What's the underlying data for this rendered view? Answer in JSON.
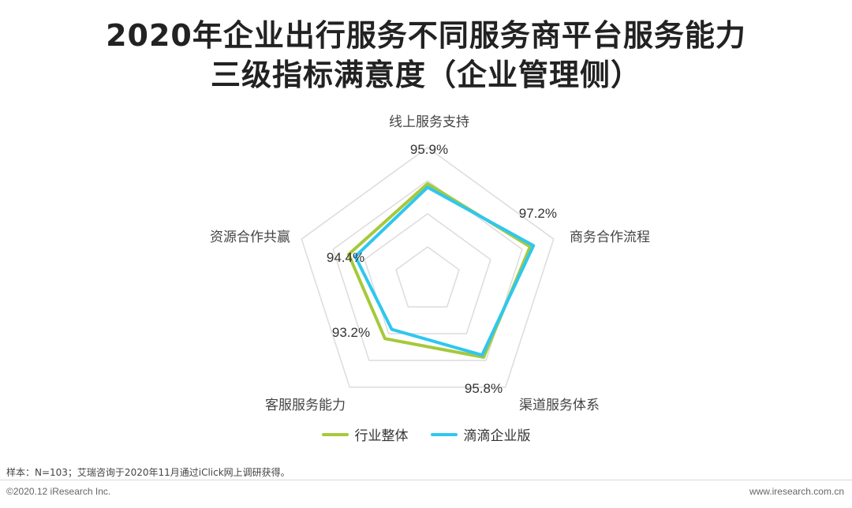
{
  "title_line1": "2020年企业出行服务不同服务商平台服务能力",
  "title_line2": "三级指标满意度（企业管理侧）",
  "chart_data": {
    "type": "radar",
    "axes": [
      "线上服务支持",
      "商务合作流程",
      "渠道服务体系",
      "客服服务能力",
      "资源合作共赢"
    ],
    "series": [
      {
        "name": "行业整体",
        "color": "#a6c93a",
        "values": [
          95.9,
          97.2,
          95.8,
          93.2,
          94.4
        ]
      },
      {
        "name": "滴滴企业版",
        "color": "#2ec7f0",
        "values": [
          95.5,
          97.6,
          95.5,
          91.9,
          93.6
        ]
      }
    ],
    "value_labels": [
      "95.9%",
      "97.2%",
      "95.8%",
      "93.2%",
      "94.4%"
    ],
    "grid": true
  },
  "note": "样本：N=103；艾瑞咨询于2020年11月通过iClick网上调研获得。",
  "footer_left": "©2020.12 iResearch Inc.",
  "footer_right": "www.iresearch.com.cn"
}
